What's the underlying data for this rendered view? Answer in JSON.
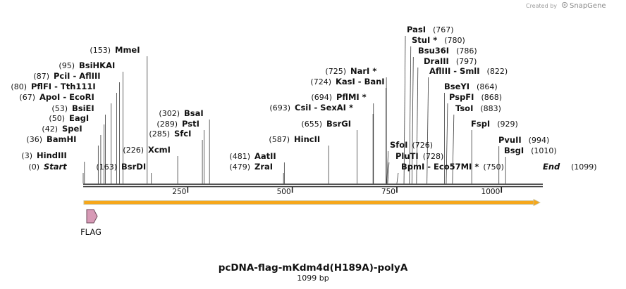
{
  "header": {
    "credit_prefix": "Created by",
    "brand": "SnapGene"
  },
  "plasmid": {
    "name": "pcDNA-flag-mKdm4d(H189A)-polyA",
    "length_label": "1099 bp",
    "length_bp": 1099
  },
  "colors": {
    "backbone": "#1a1a1a",
    "orf_fill": "#f6a71b",
    "orf_edge": "#c9bd8f",
    "feature_fill": "#d79ab6",
    "feature_edge": "#6b4a5a"
  },
  "ruler": [
    {
      "bp": 250,
      "label": "250"
    },
    {
      "bp": 500,
      "label": "500"
    },
    {
      "bp": 750,
      "label": "750"
    },
    {
      "bp": 1000,
      "label": "1000"
    }
  ],
  "features": [
    {
      "name": "FLAG",
      "start": 6,
      "end": 30,
      "direction": "forward"
    }
  ],
  "orf": {
    "start": 3,
    "end": 1099
  },
  "sites": [
    {
      "pos_label": "(0)",
      "name": "Start",
      "bp": 0,
      "italic": true
    },
    {
      "pos_label": "(3)",
      "name": "HindIII",
      "bp": 3
    },
    {
      "pos_label": "(36)",
      "name": "BamHI",
      "bp": 36
    },
    {
      "pos_label": "(42)",
      "name": "SpeI",
      "bp": 42
    },
    {
      "pos_label": "(50)",
      "name": "EagI",
      "bp": 50
    },
    {
      "pos_label": "(53)",
      "name": "BsiEI",
      "bp": 53
    },
    {
      "pos_label": "(67)",
      "name": "ApoI  - EcoRI",
      "bp": 67
    },
    {
      "pos_label": "(80)",
      "name": "PflFI  - Tth111I",
      "bp": 80
    },
    {
      "pos_label": "(87)",
      "name": "PciI  - AflIII",
      "bp": 87
    },
    {
      "pos_label": "(95)",
      "name": "BsiHKAI",
      "bp": 95
    },
    {
      "pos_label": "(153)",
      "name": "MmeI",
      "bp": 153
    },
    {
      "pos_label": "(163)",
      "name": "BsrDI",
      "bp": 163
    },
    {
      "pos_label": "(226)",
      "name": "XcmI",
      "bp": 226
    },
    {
      "pos_label": "(285)",
      "name": "SfcI",
      "bp": 285
    },
    {
      "pos_label": "(289)",
      "name": "PstI",
      "bp": 289
    },
    {
      "pos_label": "(302)",
      "name": "BsaI",
      "bp": 302
    },
    {
      "pos_label": "(479)",
      "name": "ZraI",
      "bp": 479
    },
    {
      "pos_label": "(481)",
      "name": "AatII",
      "bp": 481
    },
    {
      "pos_label": "(587)",
      "name": "HincII",
      "bp": 587
    },
    {
      "pos_label": "(655)",
      "name": "BsrGI",
      "bp": 655
    },
    {
      "pos_label": "(693)",
      "name": "CsiI  - SexAI *",
      "bp": 693
    },
    {
      "pos_label": "(694)",
      "name": "PflMI *",
      "bp": 694
    },
    {
      "pos_label": "(724)",
      "name": "KasI  - BanI",
      "bp": 724
    },
    {
      "pos_label": "(725)",
      "name": "NarI *",
      "bp": 725
    },
    {
      "pos_label": "(726)",
      "name": "SfoI",
      "bp": 726
    },
    {
      "pos_label": "(728)",
      "name": "PluTI",
      "bp": 728
    },
    {
      "pos_label": "(750)",
      "name": "BpmI  - Eco57MI *",
      "bp": 750
    },
    {
      "pos_label": "(767)",
      "name": "PasI",
      "bp": 767
    },
    {
      "pos_label": "(780)",
      "name": "StuI *",
      "bp": 780
    },
    {
      "pos_label": "(786)",
      "name": "Bsu36I",
      "bp": 786
    },
    {
      "pos_label": "(797)",
      "name": "DraIII",
      "bp": 797
    },
    {
      "pos_label": "(822)",
      "name": "AflIII  - SmlI",
      "bp": 822
    },
    {
      "pos_label": "(864)",
      "name": "BseYI",
      "bp": 864
    },
    {
      "pos_label": "(868)",
      "name": "PspFI",
      "bp": 868
    },
    {
      "pos_label": "(883)",
      "name": "TsoI",
      "bp": 883
    },
    {
      "pos_label": "(929)",
      "name": "FspI",
      "bp": 929
    },
    {
      "pos_label": "(994)",
      "name": "PvuII",
      "bp": 994
    },
    {
      "pos_label": "(1010)",
      "name": "BsgI",
      "bp": 1010
    },
    {
      "pos_label": "(1099)",
      "name": "End",
      "bp": 1099,
      "italic": true
    }
  ]
}
